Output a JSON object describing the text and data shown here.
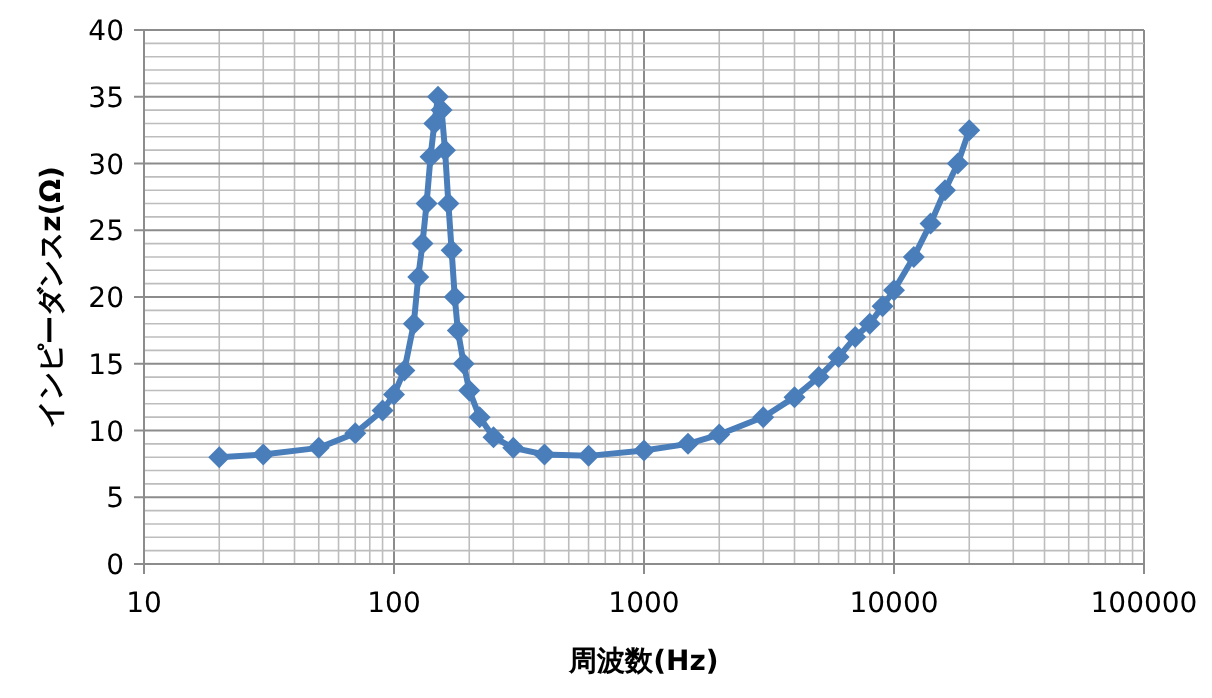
{
  "chart_data": {
    "type": "line",
    "xlabel": "周波数(Hz)",
    "ylabel": "インピーダンスz(Ω)",
    "log": "x",
    "grid": true,
    "marker": "diamond",
    "line_style": "solid",
    "xlim": [
      10,
      100000
    ],
    "xticks": [
      10,
      100,
      1000,
      10000,
      100000
    ],
    "ylim": [
      0,
      40
    ],
    "yticks": [
      0,
      5,
      10,
      15,
      20,
      25,
      30,
      35,
      40
    ],
    "x": [
      20,
      30,
      50,
      70,
      90,
      100,
      110,
      120,
      125,
      130,
      135,
      140,
      145,
      150,
      155,
      160,
      165,
      170,
      175,
      180,
      190,
      200,
      220,
      250,
      300,
      400,
      600,
      1000,
      1500,
      2000,
      3000,
      4000,
      5000,
      6000,
      7000,
      8000,
      9000,
      10000,
      12000,
      14000,
      16000,
      18000,
      20000
    ],
    "series": [
      {
        "color": "#4a7ebb",
        "values": [
          8,
          8.2,
          8.7,
          9.8,
          11.5,
          12.7,
          14.5,
          18,
          21.5,
          24,
          27,
          30.5,
          33,
          35,
          34,
          31,
          27,
          23.5,
          20,
          17.5,
          15,
          13,
          11,
          9.5,
          8.7,
          8.2,
          8.1,
          8.5,
          9,
          9.7,
          11,
          12.5,
          14,
          15.5,
          17,
          18,
          19.3,
          20.5,
          23,
          25.5,
          28,
          30,
          32.5
        ]
      }
    ]
  }
}
